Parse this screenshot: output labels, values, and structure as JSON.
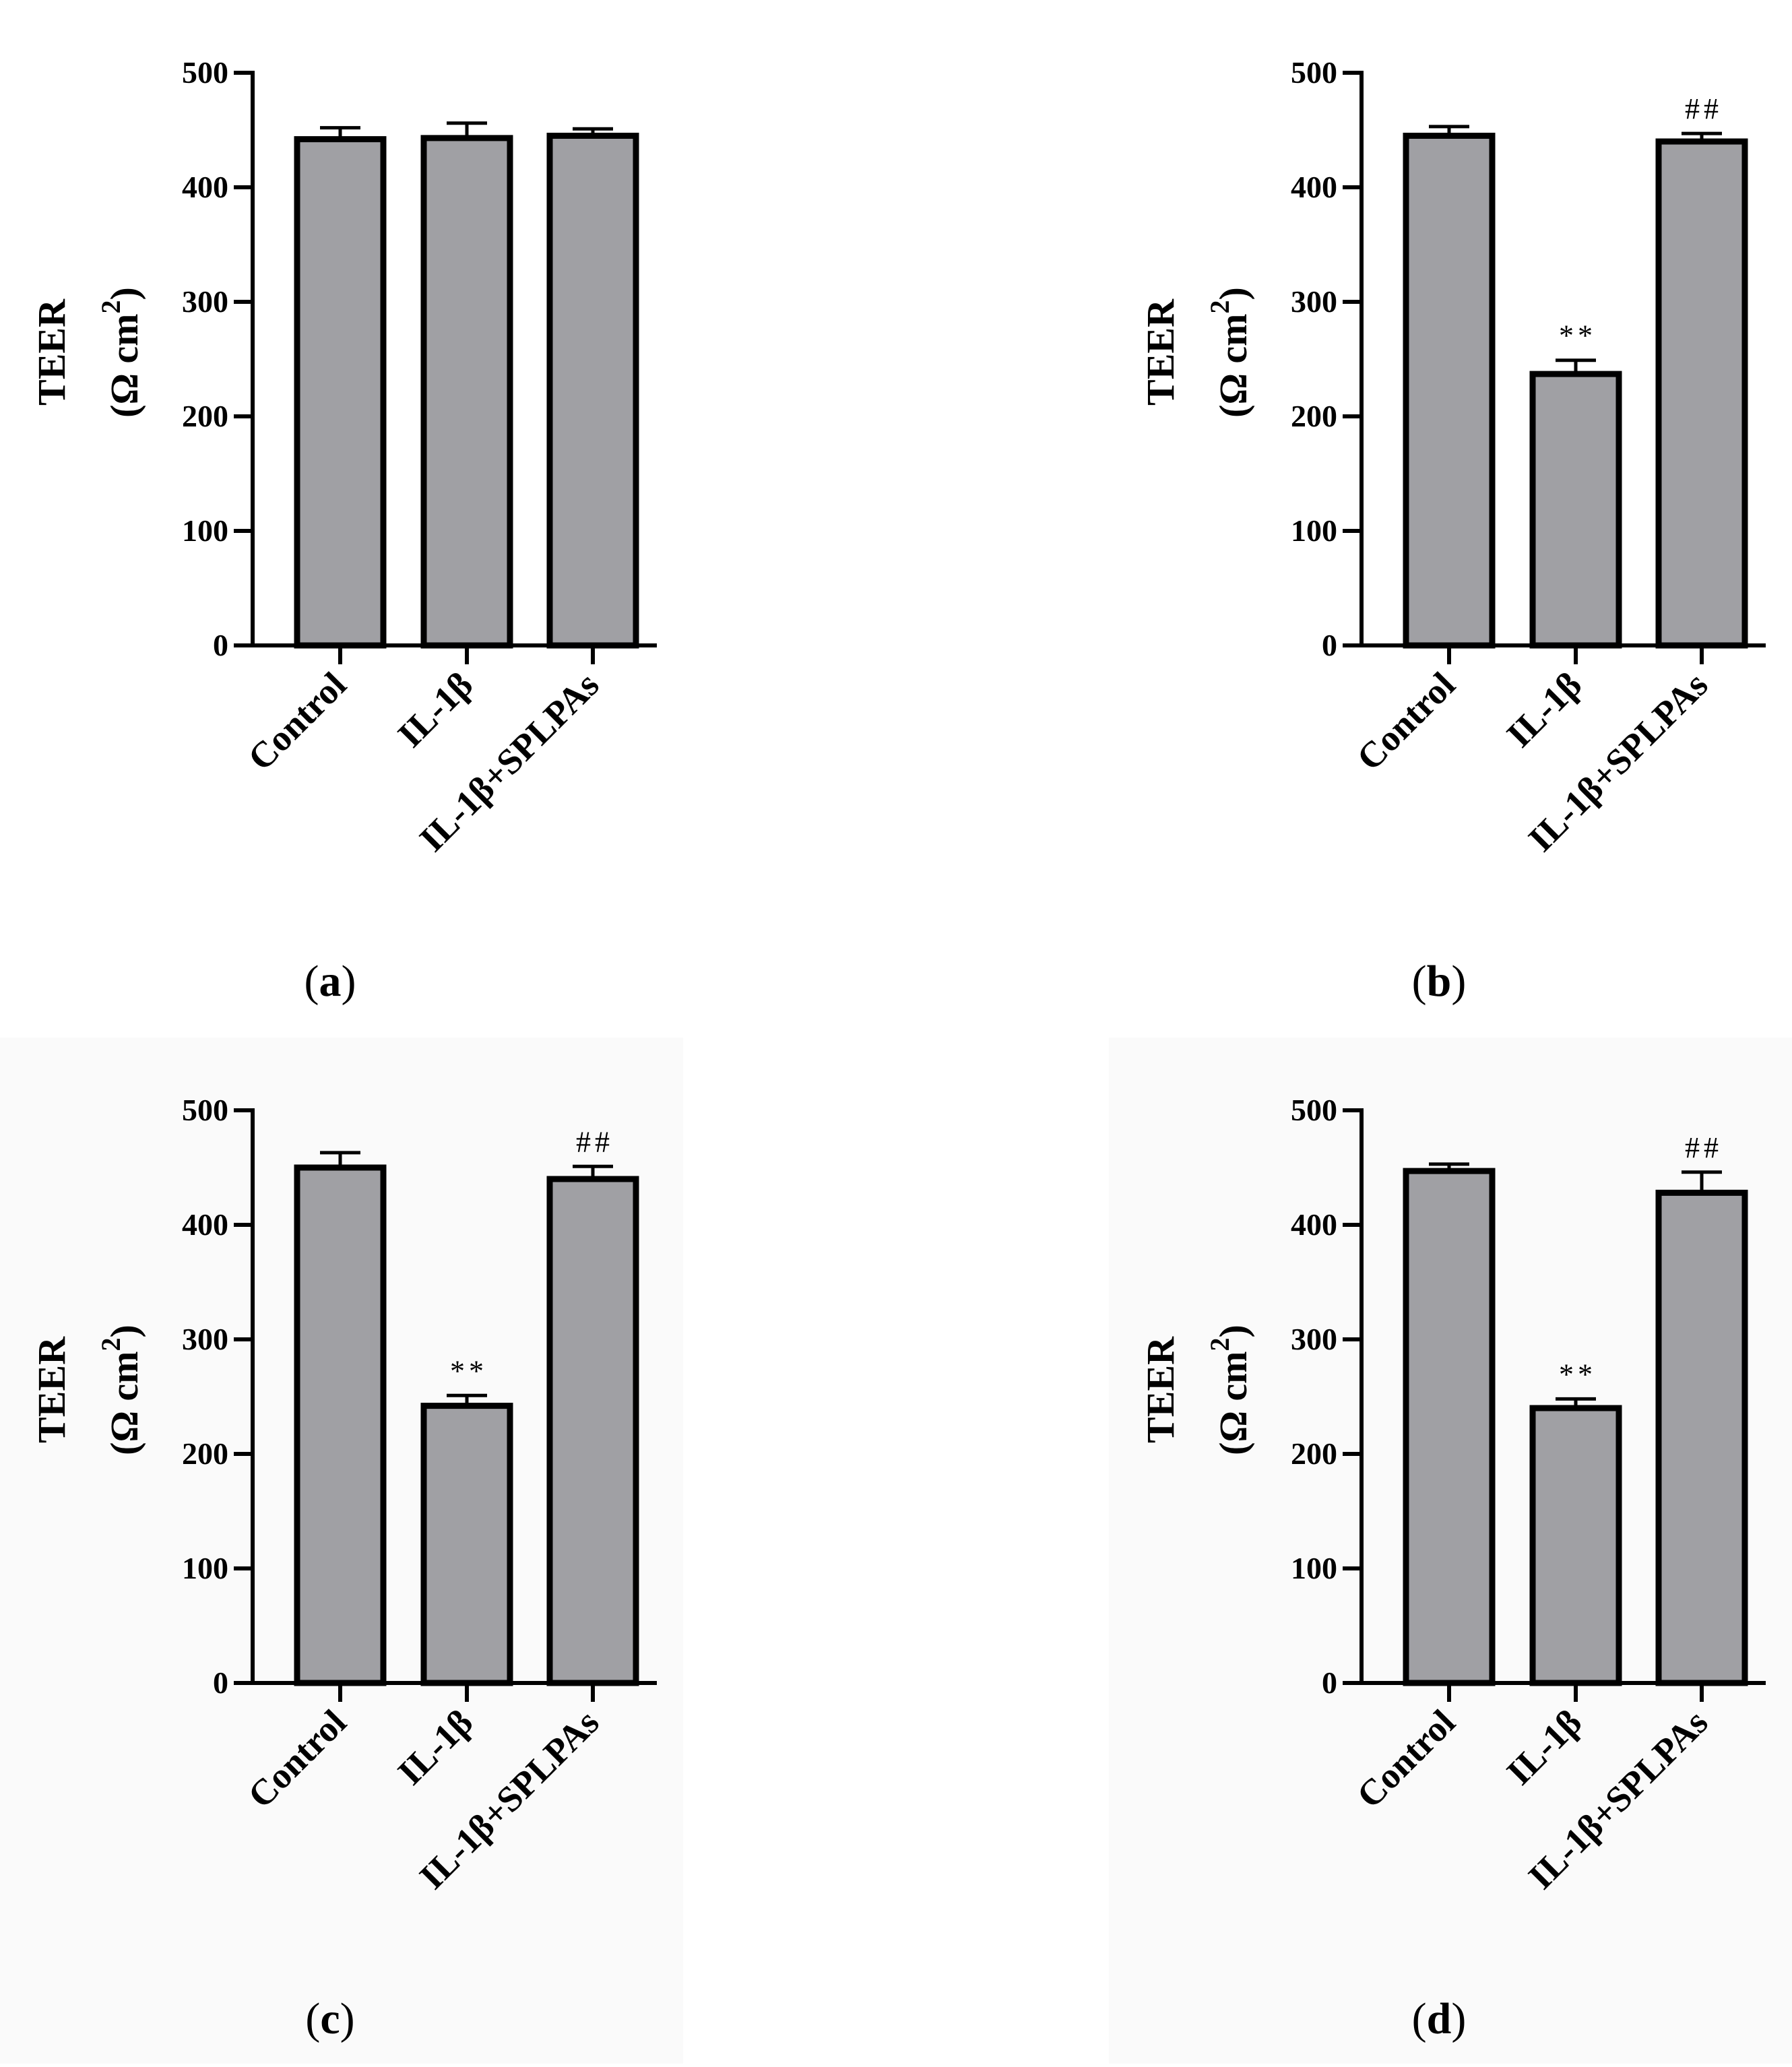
{
  "figure": {
    "panel_bg_colors": {
      "bar_fill": "#a0a0a4",
      "bar_stroke": "#000000",
      "tinted_panel_bg": "#fafafa"
    }
  },
  "chart_data": [
    {
      "id": "a",
      "type": "bar",
      "panel_label": {
        "open": "(",
        "letter": "a",
        "close": ")"
      },
      "ylabel_line1": "TEER",
      "ylabel_line2_prefix": "(Ω cm",
      "ylabel_sup": "2",
      "ylabel_line2_suffix": ")",
      "ylim": [
        0,
        500
      ],
      "yticks": [
        "0",
        "100",
        "200",
        "300",
        "400",
        "500"
      ],
      "categories": [
        "Control",
        "IL-1β",
        "IL-1β+SPLPAs"
      ],
      "values": [
        442,
        443,
        445
      ],
      "errors": [
        10,
        13,
        6
      ],
      "annotations": [
        "",
        "",
        ""
      ],
      "tinted": false
    },
    {
      "id": "b",
      "type": "bar",
      "panel_label": {
        "open": "(",
        "letter": "b",
        "close": ")"
      },
      "ylabel_line1": "TEER",
      "ylabel_line2_prefix": "(Ω cm",
      "ylabel_sup": "2",
      "ylabel_line2_suffix": ")",
      "ylim": [
        0,
        500
      ],
      "yticks": [
        "0",
        "100",
        "200",
        "300",
        "400",
        "500"
      ],
      "categories": [
        "Control",
        "IL-1β",
        "IL-1β+SPLPAs"
      ],
      "values": [
        445,
        237,
        440
      ],
      "errors": [
        8,
        12,
        7
      ],
      "annotations": [
        "",
        "**",
        "##"
      ],
      "tinted": false
    },
    {
      "id": "c",
      "type": "bar",
      "panel_label": {
        "open": "(",
        "letter": "c",
        "close": ")"
      },
      "ylabel_line1": "TEER",
      "ylabel_line2_prefix": "(Ω cm",
      "ylabel_sup": "2",
      "ylabel_line2_suffix": ")",
      "ylim": [
        0,
        500
      ],
      "yticks": [
        "0",
        "100",
        "200",
        "300",
        "400",
        "500"
      ],
      "categories": [
        "Control",
        "IL-1β",
        "IL-1β+SPLPAs"
      ],
      "values": [
        450,
        242,
        440
      ],
      "errors": [
        13,
        9,
        11
      ],
      "annotations": [
        "",
        "**",
        "##"
      ],
      "tinted": true
    },
    {
      "id": "d",
      "type": "bar",
      "panel_label": {
        "open": "(",
        "letter": "d",
        "close": ")"
      },
      "ylabel_line1": "TEER",
      "ylabel_line2_prefix": "(Ω cm",
      "ylabel_sup": "2",
      "ylabel_line2_suffix": ")",
      "ylim": [
        0,
        500
      ],
      "yticks": [
        "0",
        "100",
        "200",
        "300",
        "400",
        "500"
      ],
      "categories": [
        "Control",
        "IL-1β",
        "IL-1β+SPLPAs"
      ],
      "values": [
        447,
        240,
        428
      ],
      "errors": [
        6,
        8,
        18
      ],
      "annotations": [
        "",
        "**",
        "##"
      ],
      "tinted": true
    }
  ]
}
